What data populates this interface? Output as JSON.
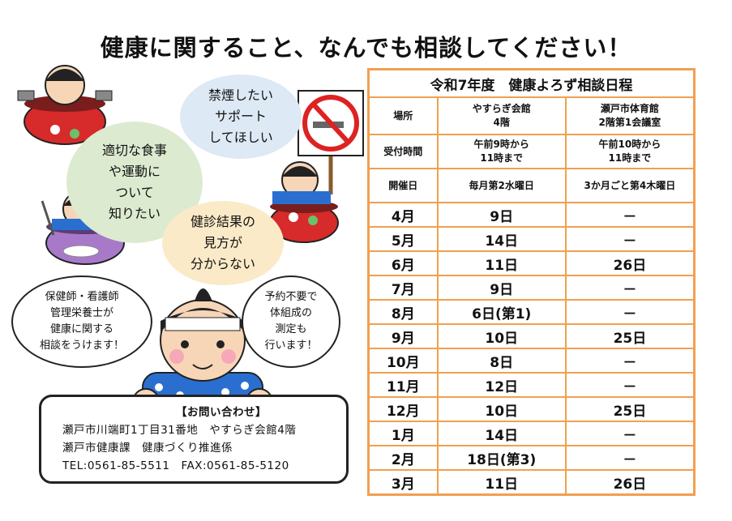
{
  "title": "健康に関すること、なんでも相談してください！",
  "bubbles": {
    "green": "適切な食事\nや運動に\nついて\n知りたい",
    "blue": "禁煙したい\nサポート\nしてほしい",
    "yellow": "健診結果の\n見方が\n分からない",
    "left": "保健師・看護師\n管理栄養士が\n健康に関する\n相談をうけます！",
    "right": "予約不要で\n体組成の\n測定も\n行います！"
  },
  "contact": {
    "heading": "【お問い合わせ】",
    "address": "瀬戸市川端町1丁目31番地　やすらぎ会館4階",
    "dept": "瀬戸市健康課　健康づくり推進係",
    "phone": "TEL:0561-85-5511　FAX:0561-85-5120"
  },
  "schedule": {
    "title": "令和7年度　健康よろず相談日程",
    "place_label": "場所",
    "place1": "やすらぎ会館\n4階",
    "place2": "瀬戸市体育館\n2階第1会議室",
    "time_label": "受付時間",
    "time1": "午前9時から\n11時まで",
    "time2": "午前10時から\n11時まで",
    "day_label": "開催日",
    "day1": "毎月第2水曜日",
    "day2": "3か月ごと第4木曜日",
    "rows": [
      {
        "month": "4月",
        "d1": "9日",
        "d2": "－"
      },
      {
        "month": "5月",
        "d1": "14日",
        "d2": "－"
      },
      {
        "month": "6月",
        "d1": "11日",
        "d2": "26日"
      },
      {
        "month": "7月",
        "d1": "9日",
        "d2": "－"
      },
      {
        "month": "8月",
        "d1": "6日(第1)",
        "d2": "－"
      },
      {
        "month": "9月",
        "d1": "10日",
        "d2": "25日"
      },
      {
        "month": "10月",
        "d1": "8日",
        "d2": "－"
      },
      {
        "month": "11月",
        "d1": "12日",
        "d2": "－"
      },
      {
        "month": "12月",
        "d1": "10日",
        "d2": "25日"
      },
      {
        "month": "1月",
        "d1": "14日",
        "d2": "－"
      },
      {
        "month": "2月",
        "d1": "18日(第3)",
        "d2": "－"
      },
      {
        "month": "3月",
        "d1": "11日",
        "d2": "26日"
      }
    ]
  },
  "icons": {
    "no_smoking": "no-smoking-sign"
  }
}
